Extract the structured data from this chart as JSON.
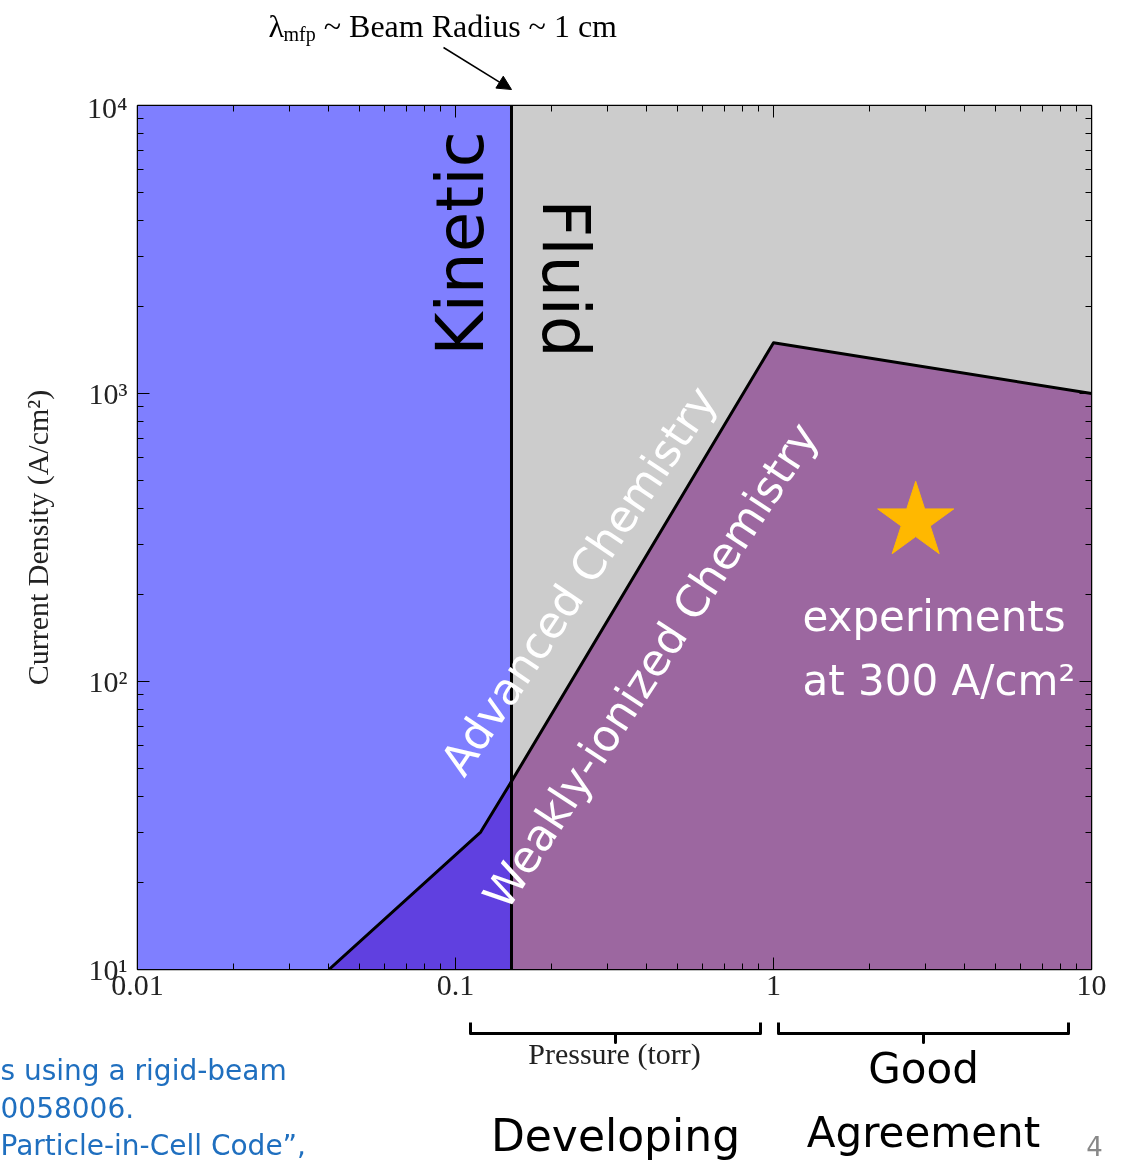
{
  "chart_data": {
    "type": "area",
    "xlabel": "Pressure (torr)",
    "ylabel": "Current Density (A/cm²)",
    "log": "xy",
    "xlim": [
      0.01,
      10
    ],
    "ylim": [
      10,
      10000
    ],
    "xticks": [
      0.01,
      0.1,
      1,
      10
    ],
    "yticks": [
      {
        "value": 10,
        "label": "10¹"
      },
      {
        "value": 100,
        "label": "10²"
      },
      {
        "value": 1000,
        "label": "10³"
      },
      {
        "value": 10000,
        "label": "10⁴"
      }
    ],
    "bands": [
      {
        "axis": "x",
        "from": 0.01,
        "to": 0.15,
        "label": "Kinetic",
        "color": "#7f7fff"
      },
      {
        "axis": "x",
        "from": 0.15,
        "to": 10,
        "label": "Fluid",
        "color": "#cccccc"
      }
    ],
    "ref_lines": [
      {
        "axis": "x",
        "value": 0.15,
        "label": "λ$_{mfp}$ ~ Beam Radius ~ 1 cm",
        "color": "#000000"
      }
    ],
    "series": [
      {
        "color": "#9c67a0",
        "x": [
          0.15,
          1,
          10
        ],
        "values": [
          45,
          1500,
          1000
        ]
      },
      {
        "color": "#6040e0",
        "x": [
          0.04,
          0.12,
          0.15
        ],
        "values": [
          10,
          30,
          45
        ]
      },
      {
        "type": "line",
        "color": "#000000",
        "x": [
          0.04,
          0.12,
          0.15,
          1,
          10
        ],
        "values": [
          10,
          30,
          45,
          1500,
          1000
        ]
      },
      {
        "type": "scatter",
        "color": "#ffb800",
        "marker": "star",
        "x": [
          2.8
        ],
        "values": [
          360
        ]
      }
    ],
    "annotations": [
      "Advanced Chemistry",
      "Weakly-ionized Chemistry",
      "experiments\nat 300 A/cm²",
      "Developing",
      "Good\nAgreement",
      "s using a rigid-beam",
      "0058006.",
      "Particle-in-Cell Code”,",
      "4"
    ]
  }
}
